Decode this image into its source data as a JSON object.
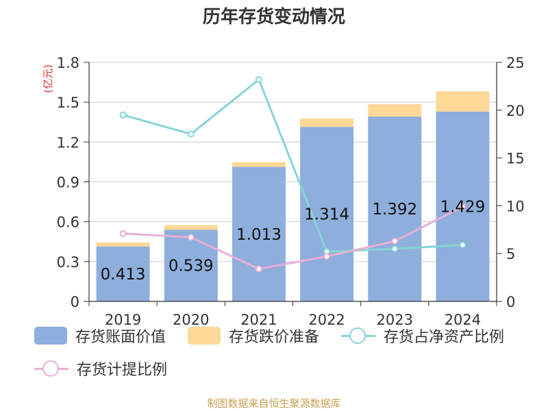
{
  "title": "历年存货变动情况",
  "source": "制图数据来自恒生聚源数据库",
  "colors": {
    "book_value": "#8eaedb",
    "impairment": "#fdd897",
    "ratio_net_assets": "#86d4d6",
    "provision_ratio": "#e8afd7",
    "unit_label": "#e03030"
  },
  "chart_data": {
    "type": "bar",
    "title": "历年存货变动情况",
    "categories": [
      "2019",
      "2020",
      "2021",
      "2022",
      "2023",
      "2024"
    ],
    "y_left": {
      "label": "(亿元)",
      "range": [
        0,
        1.8
      ],
      "ticks": [
        "0",
        "0.3",
        "0.6",
        "0.9",
        "1.2",
        "1.5",
        "1.8"
      ]
    },
    "y_right": {
      "range": [
        0,
        25
      ],
      "ticks": [
        "0",
        "5",
        "10",
        "15",
        "20",
        "25"
      ]
    },
    "grid": true,
    "legend_position": "bottom",
    "series": [
      {
        "name": "存货账面价值",
        "type": "bar",
        "axis": "left",
        "stack": "inv",
        "values": [
          0.413,
          0.539,
          1.013,
          1.314,
          1.392,
          1.429
        ],
        "labels": [
          "0.413",
          "0.539",
          "1.013",
          "1.314",
          "1.392",
          "1.429"
        ]
      },
      {
        "name": "存货跌价准备",
        "type": "bar",
        "axis": "left",
        "stack": "inv",
        "values": [
          0.031,
          0.036,
          0.035,
          0.063,
          0.093,
          0.153
        ]
      },
      {
        "name": "存货占净资产比例",
        "type": "line",
        "axis": "right",
        "values": [
          19.5,
          17.5,
          23.2,
          5.2,
          5.5,
          5.9
        ]
      },
      {
        "name": "存货计提比例",
        "type": "line",
        "axis": "right",
        "values": [
          7.1,
          6.7,
          3.4,
          4.7,
          6.3,
          9.9
        ]
      }
    ]
  }
}
